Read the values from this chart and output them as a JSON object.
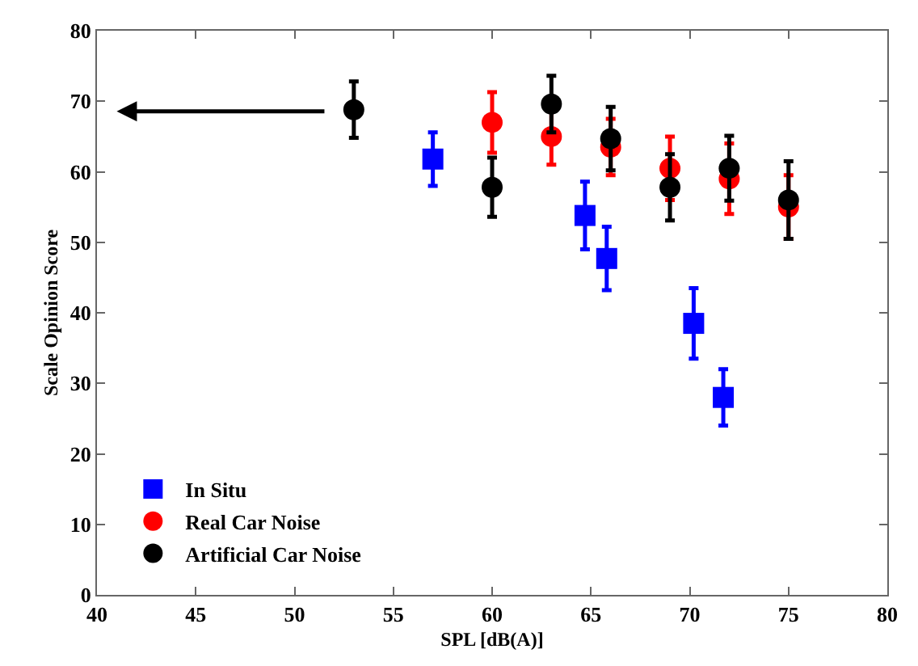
{
  "chart_data": {
    "type": "scatter",
    "xlabel": "SPL [dB(A)]",
    "ylabel": "Scale Opinion Score",
    "xlim": [
      40,
      80
    ],
    "ylim": [
      0,
      80
    ],
    "xticks": [
      40,
      45,
      50,
      55,
      60,
      65,
      70,
      75,
      80
    ],
    "yticks": [
      0,
      10,
      20,
      30,
      40,
      50,
      60,
      70,
      80
    ],
    "legend": "bottom left",
    "series": [
      {
        "name": "In Situ",
        "color": "#0000ff",
        "marker": "square",
        "x": [
          57,
          64.7,
          65.8,
          70.2,
          71.7
        ],
        "values": [
          61.8,
          53.8,
          47.7,
          38.5,
          28
        ],
        "errors": [
          3.8,
          4.8,
          4.5,
          5,
          4
        ]
      },
      {
        "name": "Real Car Noise",
        "color": "#ff0000",
        "marker": "circle",
        "x": [
          60,
          63,
          66,
          69,
          72,
          75
        ],
        "values": [
          67,
          65,
          63.5,
          60.5,
          59,
          55
        ],
        "errors": [
          4.3,
          4,
          4,
          4.5,
          5,
          4.5
        ]
      },
      {
        "name": "Artificial Car Noise",
        "color": "#000000",
        "marker": "circle",
        "x": [
          53,
          60,
          63,
          66,
          69,
          72,
          75
        ],
        "values": [
          68.8,
          57.8,
          69.6,
          64.7,
          57.8,
          60.5,
          56
        ],
        "errors": [
          4,
          4.2,
          4,
          4.5,
          4.7,
          4.6,
          5.5
        ]
      }
    ]
  }
}
